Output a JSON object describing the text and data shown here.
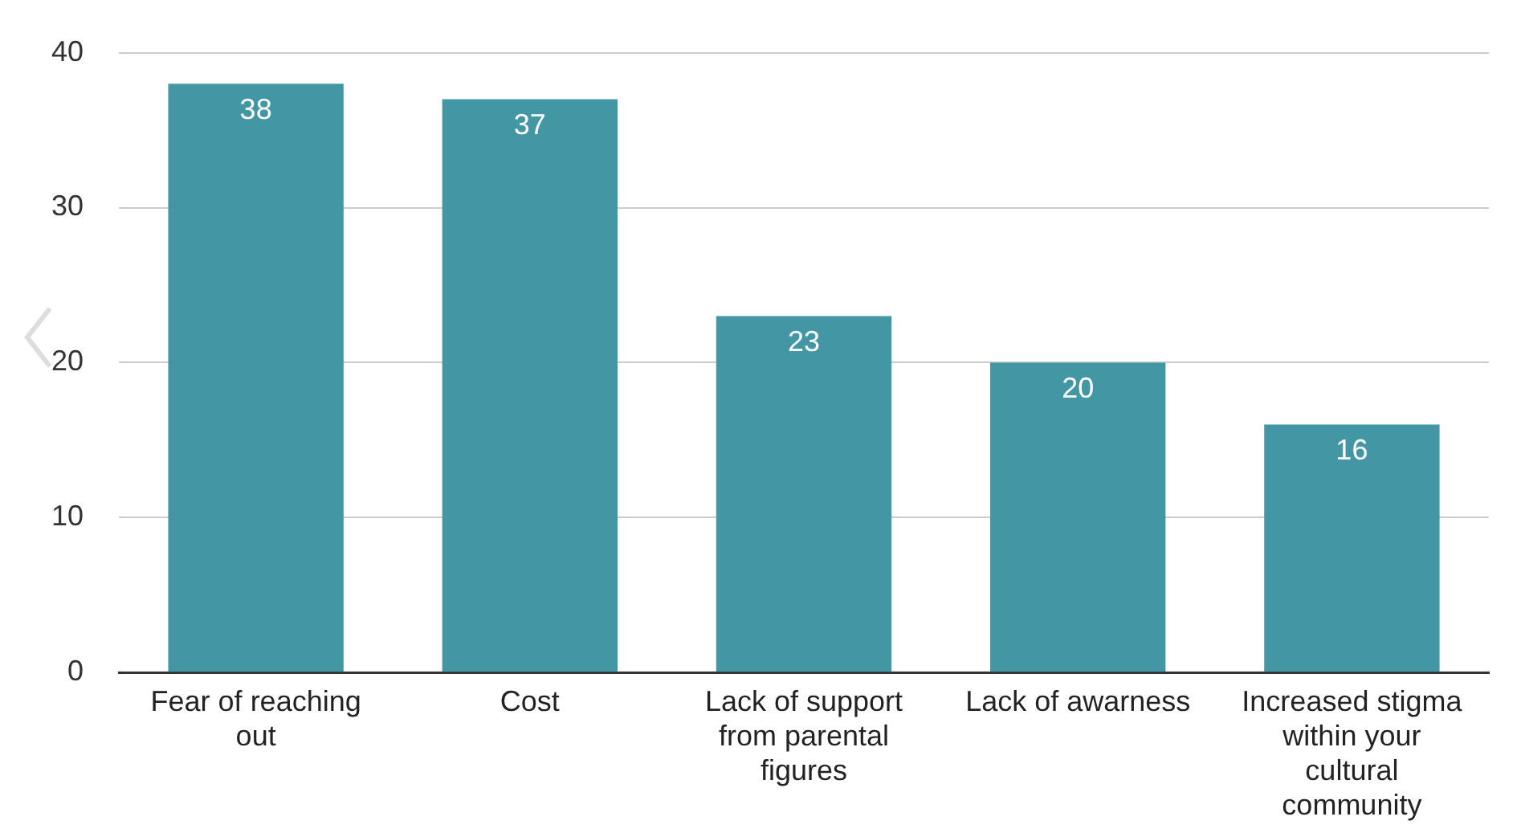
{
  "chart_data": {
    "type": "bar",
    "categories": [
      "Fear of reaching out",
      "Cost",
      "Lack of support from parental figures",
      "Lack of awarness",
      "Increased stigma within your cultural community"
    ],
    "values": [
      38,
      37,
      23,
      20,
      16
    ],
    "color": "#4396a4",
    "ylim": [
      0,
      40
    ],
    "yticks": [
      0,
      10,
      20,
      30,
      40
    ],
    "grid": "y",
    "data_labels": true,
    "legend": false
  }
}
